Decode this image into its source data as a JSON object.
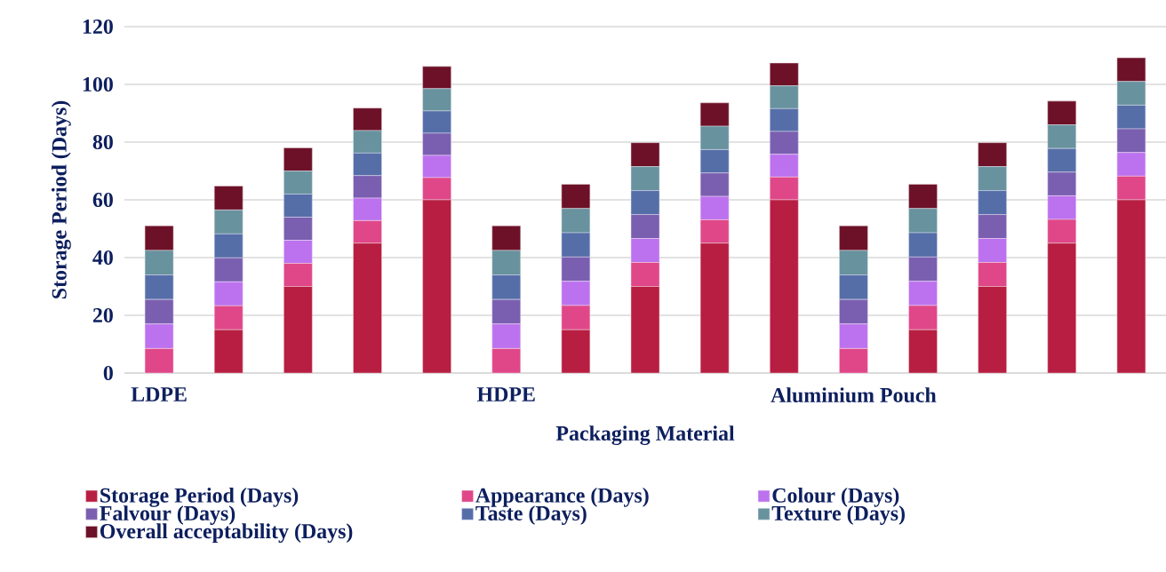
{
  "chart_data": {
    "type": "bar",
    "stacked": true,
    "xlabel": "Packaging Material",
    "ylabel": "Storage Period (Days)",
    "categories": [
      "LDPE",
      null,
      null,
      null,
      null,
      "HDPE",
      null,
      null,
      null,
      null,
      "Aluminium Pouch",
      null,
      null,
      null,
      null
    ],
    "series": [
      {
        "name": "Storage Period (Days)",
        "color": "#b71e42",
        "values": [
          0,
          15,
          30,
          45,
          60,
          0,
          15,
          30,
          45,
          60,
          0,
          15,
          30,
          45,
          60
        ]
      },
      {
        "name": "Appearance (Days)",
        "color": "#df4789",
        "values": [
          8.5,
          8.3,
          8,
          7.8,
          7.7,
          8.5,
          8.4,
          8.3,
          8.1,
          7.9,
          8.5,
          8.4,
          8.3,
          8.2,
          8.2
        ]
      },
      {
        "name": "Colour (Days)",
        "color": "#bc72ee",
        "values": [
          8.5,
          8.3,
          8,
          7.8,
          7.7,
          8.5,
          8.4,
          8.3,
          8.1,
          7.9,
          8.5,
          8.4,
          8.3,
          8.2,
          8.2
        ]
      },
      {
        "name": "Falvour (Days)",
        "color": "#7a5fb0",
        "values": [
          8.5,
          8.3,
          8,
          7.8,
          7.7,
          8.5,
          8.4,
          8.3,
          8.1,
          7.9,
          8.5,
          8.4,
          8.3,
          8.2,
          8.2
        ]
      },
      {
        "name": "Taste (Days)",
        "color": "#566ea8",
        "values": [
          8.5,
          8.3,
          8,
          7.8,
          7.7,
          8.5,
          8.4,
          8.3,
          8.1,
          7.9,
          8.5,
          8.4,
          8.3,
          8.2,
          8.2
        ]
      },
      {
        "name": "Texture (Days)",
        "color": "#68929e",
        "values": [
          8.5,
          8.3,
          8,
          7.8,
          7.7,
          8.5,
          8.4,
          8.3,
          8.1,
          7.9,
          8.5,
          8.4,
          8.3,
          8.2,
          8.2
        ]
      },
      {
        "name": "Overall acceptability (Days)",
        "color": "#6d1128",
        "values": [
          8.5,
          8.3,
          8,
          7.8,
          7.7,
          8.5,
          8.4,
          8.3,
          8.1,
          7.9,
          8.5,
          8.4,
          8.3,
          8.2,
          8.2
        ]
      }
    ],
    "ylim": [
      0,
      120
    ],
    "yticks": [
      0,
      20,
      40,
      60,
      80,
      100,
      120
    ],
    "grid": "y",
    "legend": "bottom"
  }
}
